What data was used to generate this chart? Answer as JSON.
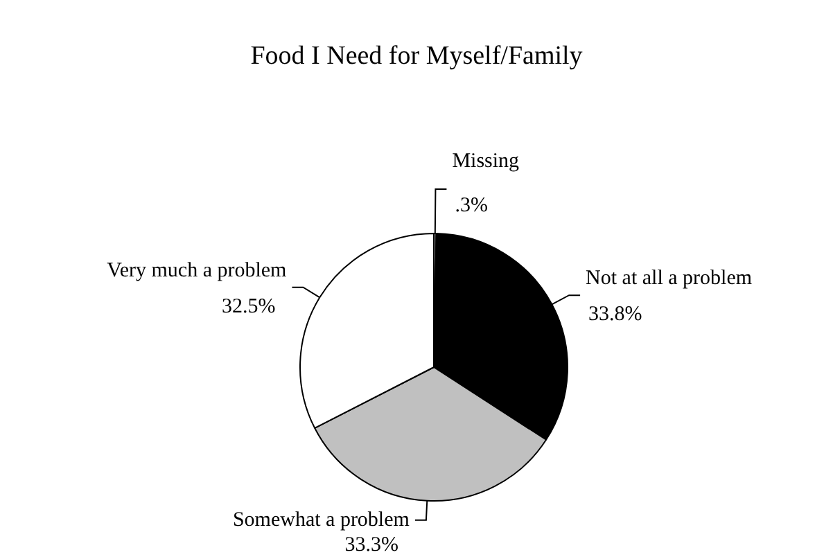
{
  "chart_data": {
    "type": "pie",
    "title": "Food I Need for Myself/Family",
    "categories": [
      "Missing",
      "Not at all a problem",
      "Somewhat a problem",
      "Very much a problem"
    ],
    "values": [
      0.3,
      33.8,
      33.3,
      32.5
    ],
    "value_labels": [
      ".3%",
      "33.8%",
      "33.3%",
      "32.5%"
    ],
    "colors": [
      "#808080",
      "#000000",
      "#c0c0c0",
      "#ffffff"
    ],
    "legend": false
  }
}
